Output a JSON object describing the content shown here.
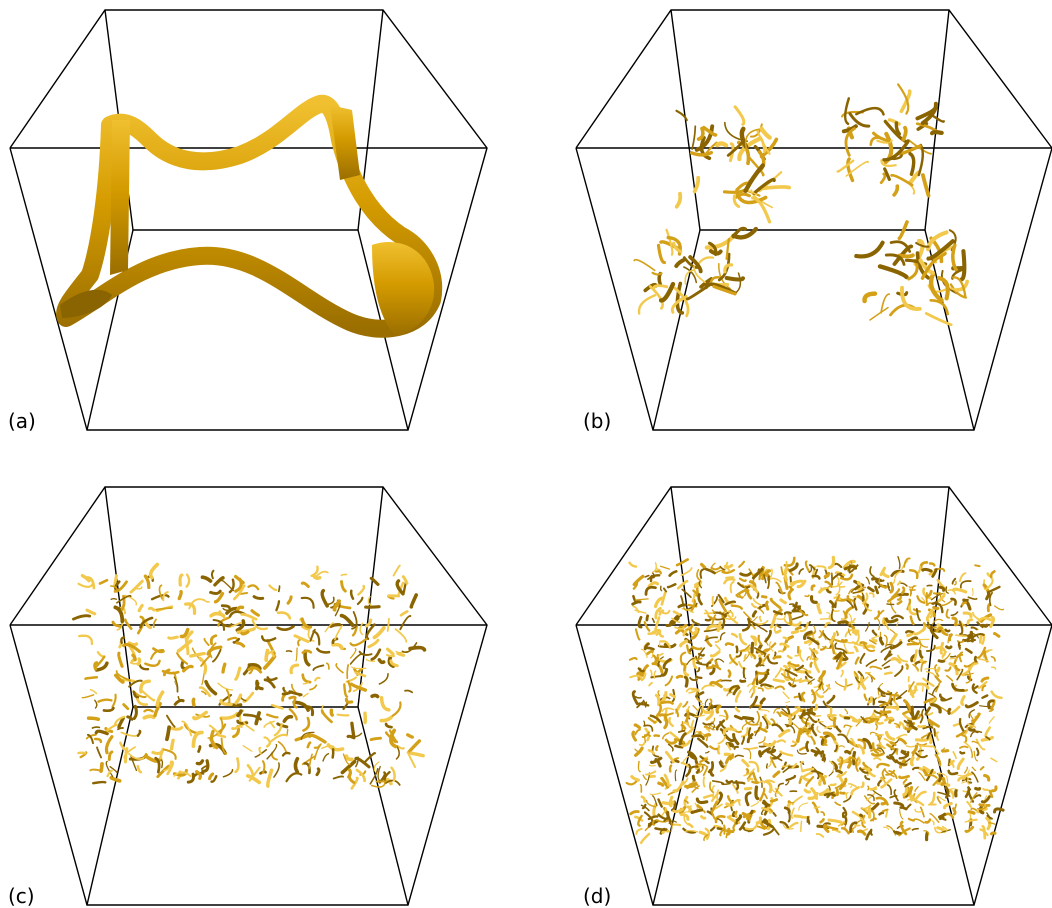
{
  "panels": [
    {
      "id": "a",
      "label": "(a)",
      "density": 0
    },
    {
      "id": "b",
      "label": "(b)",
      "density": 1
    },
    {
      "id": "c",
      "label": "(c)",
      "density": 2
    },
    {
      "id": "d",
      "label": "(d)",
      "density": 3
    }
  ],
  "colors": {
    "surface": "#d4a017",
    "surface_dark": "#8a6400",
    "surface_light": "#f2c94c",
    "box_edge": "#000000",
    "background": "#ffffff"
  }
}
